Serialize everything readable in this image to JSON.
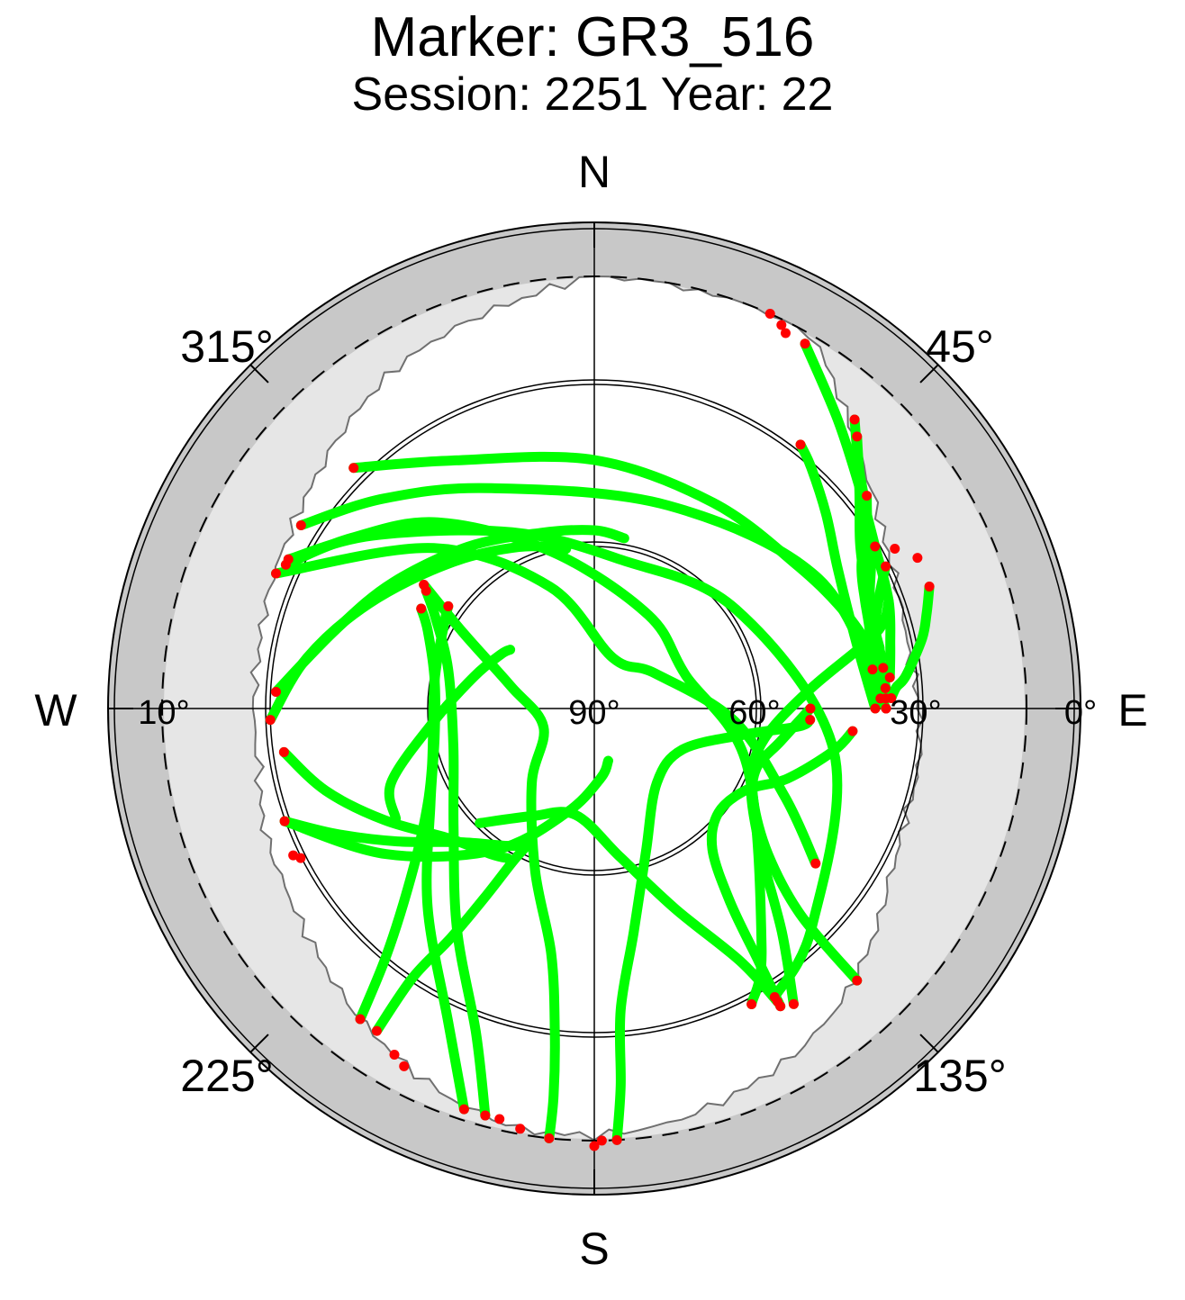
{
  "chart_data": {
    "type": "scatter",
    "projection": "polar-skyplot",
    "title": "Marker: GR3_516",
    "subtitle": "Session: 2251 Year: 22",
    "cardinal": {
      "north": "N",
      "east": "E",
      "south": "S",
      "west": "W"
    },
    "azimuth_labels": [
      "45°",
      "135°",
      "225°",
      "315°"
    ],
    "elevation_labels": [
      "90°",
      "60°",
      "30°",
      "0°",
      "10°"
    ],
    "elevation_range": [
      0,
      90
    ],
    "elevation_mask_deg": 10,
    "colors": {
      "tracks": "#00ff00",
      "endpoints": "#ff0000",
      "outer_band": "#c8c8c8",
      "obstruction": "#e6e6e6",
      "visible_sky": "#ffffff",
      "obstruction_edge": "#707070"
    },
    "visibility_horizon": {
      "description": "irregular boundary of the unobstructed sky, elevation (deg) by azimuth (deg)",
      "azimuth": [
        0,
        20,
        30,
        40,
        50,
        60,
        70,
        80,
        90,
        100,
        110,
        120,
        130,
        140,
        150,
        160,
        170,
        180,
        190,
        200,
        210,
        220,
        230,
        240,
        250,
        260,
        270,
        280,
        290,
        300,
        310,
        320,
        330,
        340,
        350
      ],
      "elevation": [
        10,
        10,
        10,
        18,
        24,
        28,
        30,
        31,
        30,
        29,
        29,
        27,
        23,
        19,
        16,
        14,
        12,
        11,
        11,
        13,
        16,
        19,
        22,
        24,
        25,
        27,
        27,
        27,
        26,
        25,
        23,
        20,
        17,
        15,
        13
      ]
    },
    "series": [
      {
        "tracks": [
          {
            "az": [
              268,
              280,
              295,
              315,
              335,
              350
            ],
            "el": [
              30,
              36,
              44,
              52,
              57,
              60
            ],
            "start_marker": true,
            "end_marker": false
          },
          {
            "az": [
              273,
              287,
              302,
              322,
              343,
              360,
              10
            ],
            "el": [
              31,
              40,
              46,
              52,
              56,
              57,
              58
            ],
            "start_marker": true,
            "end_marker": false
          },
          {
            "az": [
              293,
              315,
              340,
              20,
              60,
              95,
              115,
              125
            ],
            "el": [
              26,
              48,
              66,
              80,
              77,
              64,
              51,
              40
            ],
            "start_marker": true,
            "end_marker": true
          },
          {
            "az": [
              296,
              308,
              335,
              10,
              55,
              100,
              135,
              148
            ],
            "el": [
              27,
              38,
              54,
              62,
              58,
              45,
              33,
              27
            ],
            "start_marker": true,
            "end_marker": true
          },
          {
            "az": [
              295,
              305,
              320,
              345,
              30,
              70,
              110,
              145,
              152
            ],
            "el": [
              27,
              35,
              45,
              60,
              70,
              72,
              60,
              36,
              28
            ],
            "start_marker": true,
            "end_marker": true
          },
          {
            "az": [
              262,
              253,
              242,
              228,
              215,
              210
            ],
            "el": [
              32,
              38,
              46,
              54,
              57,
              58
            ],
            "start_marker": true,
            "end_marker": false
          },
          {
            "az": [
              250,
              244,
              236,
              225,
              212,
              206
            ],
            "el": [
              29,
              37,
              46,
              55,
              60,
              62
            ],
            "start_marker": true,
            "end_marker": false
          },
          {
            "az": [
              250,
              235,
              215,
              195,
              175,
              165
            ],
            "el": [
              29,
              43,
              58,
              70,
              77,
              80
            ],
            "start_marker": false,
            "end_marker": false
          },
          {
            "az": [
              241,
              250,
              265,
              285,
              300,
              305
            ],
            "el": [
              48,
              50,
              60,
              67,
              70,
              71
            ],
            "start_marker": false,
            "end_marker": false
          },
          {
            "az": [
              214,
              214,
              212,
              210,
              208,
              206
            ],
            "el": [
              18,
              30,
              40,
              50,
              58,
              62
            ],
            "start_marker": true,
            "end_marker": false
          },
          {
            "az": [
              217,
              220,
              226,
              236,
              250,
              280,
              300,
              305
            ],
            "el": [
              18,
              30,
              42,
              52,
              58,
              60,
              58,
              57
            ],
            "start_marker": true,
            "end_marker": true
          },
          {
            "az": [
              198,
              205,
              220,
              240,
              260,
              280,
              295,
              300
            ],
            "el": [
              12,
              26,
              42,
              55,
              60,
              60,
              56,
              53
            ],
            "start_marker": true,
            "end_marker": true
          },
          {
            "az": [
              195,
              200,
              212,
              230,
              255,
              285,
              300,
              305
            ],
            "el": [
              12,
              26,
              42,
              56,
              63,
              62,
              56,
              52
            ],
            "start_marker": true,
            "end_marker": true
          },
          {
            "az": [
              186,
              186,
              187,
              190,
              200,
              220,
              250,
              285,
              300,
              306
            ],
            "el": [
              10,
              18,
              30,
              44,
              58,
              72,
              80,
              74,
              62,
              51
            ],
            "start_marker": true,
            "end_marker": true
          },
          {
            "az": [
              177,
              176,
              175,
              170,
              160,
              140,
              115,
              100,
              95,
              93
            ],
            "el": [
              10,
              20,
              34,
              48,
              62,
              72,
              72,
              62,
              52,
              50
            ],
            "start_marker": true,
            "end_marker": true
          },
          {
            "az": [
              148,
              150,
              158,
              170,
              190,
              210,
              225
            ],
            "el": [
              26,
              36,
              50,
              62,
              70,
              67,
              60
            ],
            "start_marker": true,
            "end_marker": false
          },
          {
            "az": [
              148,
              147,
              145,
              140,
              130,
              118,
              110,
              100,
              95
            ],
            "el": [
              25,
              34,
              46,
              56,
              60,
              58,
              52,
              45,
              42
            ],
            "start_marker": true,
            "end_marker": true
          },
          {
            "az": [
              146,
              140,
              130,
              115,
              100,
              85,
              75,
              70
            ],
            "el": [
              24,
              36,
              50,
              58,
              58,
              50,
              36,
              32
            ],
            "start_marker": true,
            "end_marker": false
          },
          {
            "az": [
              136,
              135,
              130,
              120,
              110,
              100,
              90
            ],
            "el": [
              20,
              36,
              48,
              56,
              58,
              55,
              50
            ],
            "start_marker": true,
            "end_marker": true
          },
          {
            "az": [
              90,
              75,
              60,
              50,
              42,
              38
            ],
            "el": [
              38,
              40,
              38,
              34,
              30,
              28
            ],
            "start_marker": true,
            "end_marker": true
          },
          {
            "az": [
              30,
              40,
              50,
              60,
              70,
              78,
              84
            ],
            "el": [
              12,
              20,
              26,
              30,
              32,
              34,
              35
            ],
            "start_marker": true,
            "end_marker": true
          },
          {
            "az": [
              42,
              50,
              58,
              66,
              72,
              78
            ],
            "el": [
              18,
              26,
              32,
              35,
              36,
              36
            ],
            "start_marker": true,
            "end_marker": false
          },
          {
            "az": [
              44,
              48,
              54,
              62,
              68,
              74,
              82
            ],
            "el": [
              20,
              24,
              28,
              34,
              36,
              37,
              38
            ],
            "start_marker": true,
            "end_marker": true
          },
          {
            "az": [
              52,
              56,
              62,
              68,
              74,
              80
            ],
            "el": [
              26,
              29,
              32,
              35,
              36,
              36
            ],
            "start_marker": true,
            "end_marker": false
          },
          {
            "az": [
              64,
              68,
              74,
              80,
              85,
              88
            ],
            "el": [
              30,
              33,
              36,
              37,
              36,
              36
            ],
            "start_marker": true,
            "end_marker": true
          },
          {
            "az": [
              70,
              74,
              78,
              84,
              86,
              88
            ],
            "el": [
              24,
              26,
              28,
              32,
              34,
              35
            ],
            "start_marker": true,
            "end_marker": true
          },
          {
            "az": [
              302,
              315,
              335,
              20,
              60,
              90
            ],
            "el": [
              26,
              35,
              45,
              50,
              42,
              36
            ],
            "start_marker": true,
            "end_marker": true
          },
          {
            "az": [
              315,
              330,
              0,
              30,
              55,
              70,
              82
            ],
            "el": [
              27,
              37,
              44,
              46,
              44,
              40,
              36
            ],
            "start_marker": true,
            "end_marker": true
          }
        ]
      }
    ],
    "extra_endpoints": [
      {
        "az": 24,
        "el": 10
      },
      {
        "az": 26,
        "el": 11
      },
      {
        "az": 27,
        "el": 12
      },
      {
        "az": 60,
        "el": 30
      },
      {
        "az": 62,
        "el": 27
      },
      {
        "az": 65,
        "el": 24
      },
      {
        "az": 90,
        "el": 36
      },
      {
        "az": 88,
        "el": 37
      },
      {
        "az": 86,
        "el": 36
      },
      {
        "az": 244,
        "el": 28
      },
      {
        "az": 243,
        "el": 29
      },
      {
        "az": 208,
        "el": 15
      },
      {
        "az": 210,
        "el": 16
      },
      {
        "az": 190,
        "el": 11
      },
      {
        "az": 193,
        "el": 12
      },
      {
        "az": 180,
        "el": 9
      },
      {
        "az": 179,
        "el": 10
      }
    ]
  }
}
